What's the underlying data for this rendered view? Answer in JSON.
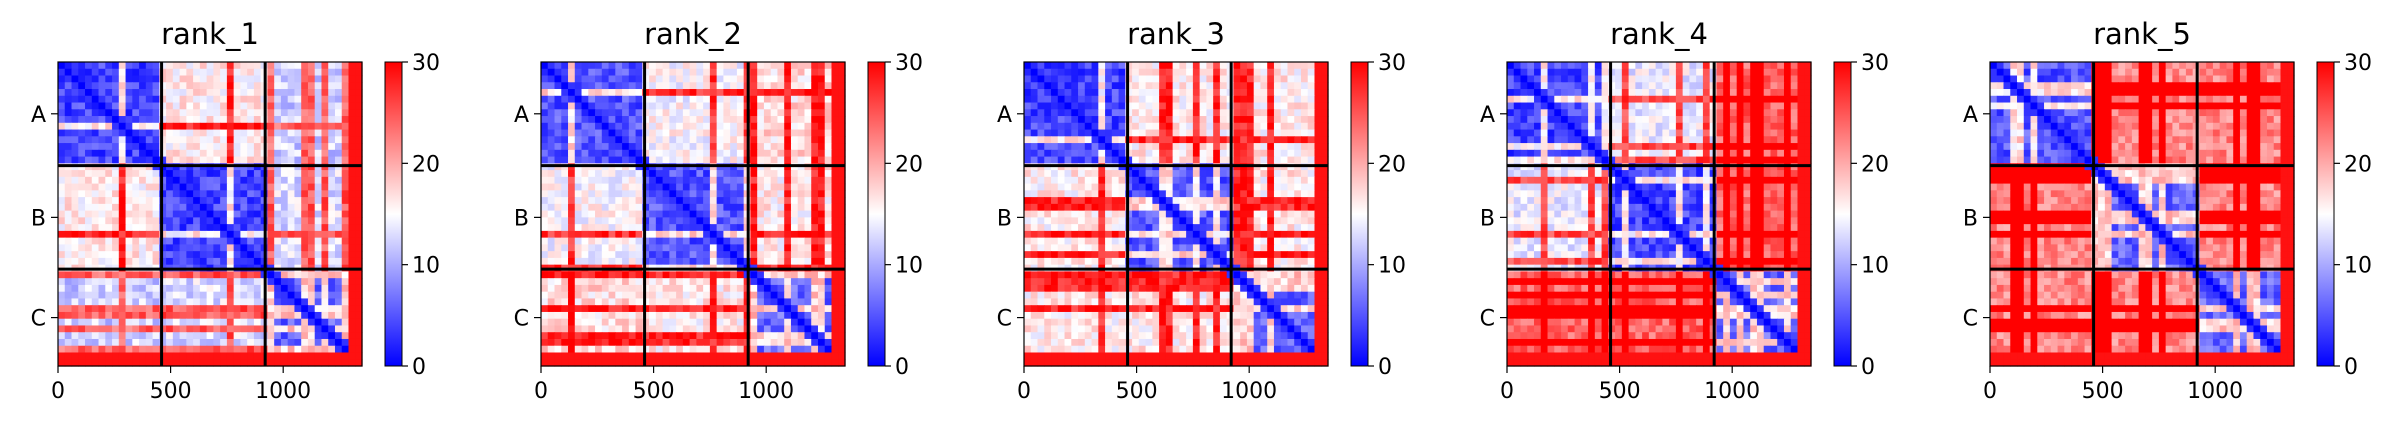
{
  "chart_data": {
    "type": "heatmap",
    "colormap": {
      "low": "#0000ff",
      "mid": "#ffffff",
      "high": "#ff0000"
    },
    "value_range": [
      0,
      30
    ],
    "colorbar_ticks": [
      "0",
      "10",
      "20",
      "30"
    ],
    "matrix_size": 1350,
    "x_ticks": [
      {
        "value": 0,
        "label": "0"
      },
      {
        "value": 500,
        "label": "500"
      },
      {
        "value": 1000,
        "label": "1000"
      }
    ],
    "chains": [
      {
        "label": "A",
        "start": 0,
        "end": 460
      },
      {
        "label": "B",
        "start": 460,
        "end": 920
      },
      {
        "label": "C",
        "start": 920,
        "end": 1350
      }
    ],
    "panels": [
      {
        "title": "rank_1"
      },
      {
        "title": "rank_2"
      },
      {
        "title": "rank_3"
      },
      {
        "title": "rank_4"
      },
      {
        "title": "rank_5"
      }
    ]
  }
}
